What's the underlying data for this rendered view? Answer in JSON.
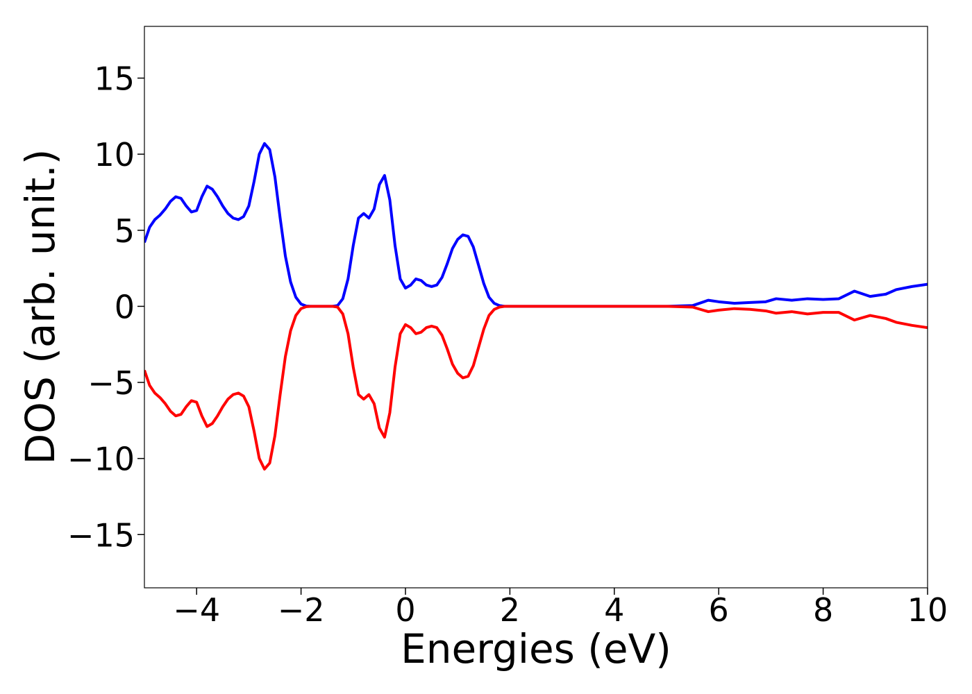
{
  "chart_data": {
    "type": "line",
    "xlabel": "Energies (eV)",
    "ylabel": "DOS (arb. unit.)",
    "x": [
      -5,
      -4.9,
      -4.8,
      -4.7,
      -4.6,
      -4.5,
      -4.4,
      -4.3,
      -4.2,
      -4.1,
      -4,
      -3.9,
      -3.8,
      -3.7,
      -3.6,
      -3.5,
      -3.4,
      -3.3,
      -3.2,
      -3.1,
      -3,
      -2.9,
      -2.8,
      -2.7,
      -2.6,
      -2.5,
      -2.4,
      -2.3,
      -2.2,
      -2.1,
      -2,
      -1.9,
      -1.8,
      -1.7,
      -1.6,
      -1.5,
      -1.4,
      -1.3,
      -1.2,
      -1.1,
      -1,
      -0.9,
      -0.8,
      -0.7,
      -0.6,
      -0.5,
      -0.4,
      -0.3,
      -0.2,
      -0.1,
      0,
      0.1,
      0.2,
      0.3,
      0.4,
      0.5,
      0.6,
      0.7,
      0.8,
      0.9,
      1,
      1.1,
      1.2,
      1.3,
      1.4,
      1.5,
      1.6,
      1.7,
      1.8,
      1.9,
      2,
      2.5,
      3,
      3.5,
      4,
      4.5,
      5,
      5.5,
      5.8,
      6,
      6.3,
      6.6,
      6.9,
      7.1,
      7.4,
      7.7,
      8,
      8.3,
      8.6,
      8.9,
      9.2,
      9.4,
      9.7,
      10
    ],
    "series": [
      {
        "color": "#0000ff",
        "values": [
          4.2,
          5.2,
          5.7,
          6.0,
          6.4,
          6.9,
          7.2,
          7.1,
          6.6,
          6.2,
          6.3,
          7.2,
          7.9,
          7.7,
          7.2,
          6.6,
          6.1,
          5.8,
          5.7,
          5.9,
          6.6,
          8.2,
          10.0,
          10.7,
          10.3,
          8.5,
          5.8,
          3.3,
          1.6,
          0.6,
          0.15,
          0.02,
          0,
          0,
          0,
          0,
          0,
          0.05,
          0.5,
          1.8,
          4.0,
          5.8,
          6.1,
          5.8,
          6.4,
          8.0,
          8.6,
          7.0,
          4.0,
          1.8,
          1.2,
          1.4,
          1.8,
          1.7,
          1.4,
          1.3,
          1.4,
          1.9,
          2.8,
          3.8,
          4.4,
          4.7,
          4.6,
          3.9,
          2.7,
          1.5,
          0.6,
          0.2,
          0.05,
          0,
          0,
          0,
          0,
          0,
          0,
          0,
          0,
          0.05,
          0.4,
          0.3,
          0.2,
          0.25,
          0.3,
          0.5,
          0.4,
          0.5,
          0.45,
          0.5,
          1.0,
          0.65,
          0.8,
          1.1,
          1.3,
          1.45
        ]
      },
      {
        "color": "#ff0000",
        "values": [
          -4.2,
          -5.2,
          -5.7,
          -6.0,
          -6.4,
          -6.9,
          -7.2,
          -7.1,
          -6.6,
          -6.2,
          -6.3,
          -7.2,
          -7.9,
          -7.7,
          -7.2,
          -6.6,
          -6.1,
          -5.8,
          -5.7,
          -5.9,
          -6.6,
          -8.2,
          -10.0,
          -10.7,
          -10.3,
          -8.5,
          -5.8,
          -3.3,
          -1.6,
          -0.6,
          -0.15,
          -0.02,
          0,
          0,
          0,
          0,
          0,
          -0.05,
          -0.5,
          -1.8,
          -4.0,
          -5.8,
          -6.1,
          -5.8,
          -6.4,
          -8.0,
          -8.6,
          -7.0,
          -4.0,
          -1.8,
          -1.2,
          -1.4,
          -1.8,
          -1.7,
          -1.4,
          -1.3,
          -1.4,
          -1.9,
          -2.8,
          -3.8,
          -4.4,
          -4.7,
          -4.6,
          -3.9,
          -2.7,
          -1.5,
          -0.6,
          -0.2,
          -0.05,
          0,
          0,
          0,
          0,
          0,
          0,
          0,
          0,
          -0.05,
          -0.35,
          -0.25,
          -0.15,
          -0.2,
          -0.3,
          -0.45,
          -0.35,
          -0.5,
          -0.4,
          -0.4,
          -0.9,
          -0.6,
          -0.8,
          -1.05,
          -1.25,
          -1.4
        ]
      }
    ],
    "xlim": [
      -5,
      10
    ],
    "xticks": [
      {
        "value": -4,
        "label": "−4"
      },
      {
        "value": -2,
        "label": "−2"
      },
      0,
      2,
      4,
      6,
      8,
      10
    ],
    "ylim": [
      -18.5,
      18.4
    ],
    "yticks": [
      {
        "value": -15,
        "label": "−15"
      },
      {
        "value": -10,
        "label": "−10"
      },
      {
        "value": -5,
        "label": "−5"
      },
      0,
      5,
      10,
      15
    ]
  }
}
